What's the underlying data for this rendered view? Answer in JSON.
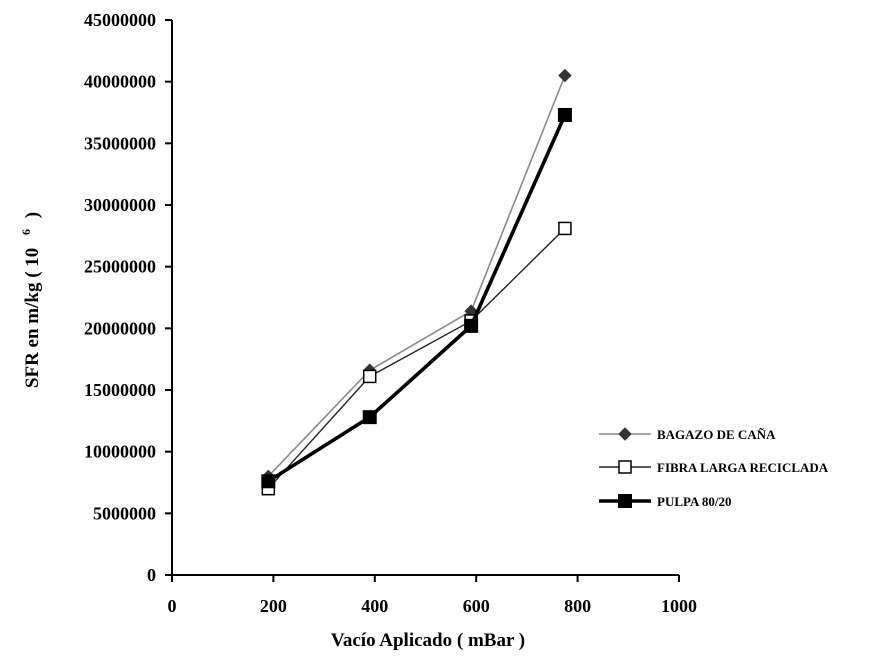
{
  "chart_data": {
    "type": "line",
    "xlabel": "Vacío Aplicado ( mBar )",
    "ylabel": "SFR en m/kg ( 10  6 )",
    "ylabel_main": "SFR en m/kg ( 10",
    "ylabel_sup": "6",
    "ylabel_close": ")",
    "xlim": [
      0,
      1000
    ],
    "ylim": [
      0,
      45000000
    ],
    "x_ticks": [
      "0",
      "200",
      "400",
      "600",
      "800",
      "1000"
    ],
    "y_ticks": [
      "0",
      "5000000",
      "10000000",
      "15000000",
      "20000000",
      "25000000",
      "30000000",
      "35000000",
      "40000000",
      "45000000"
    ],
    "grid": false,
    "legend_position": "right",
    "series": [
      {
        "name": "BAGAZO DE CAÑA",
        "marker": "diamond",
        "color": "#888888",
        "x": [
          190,
          390,
          590,
          775
        ],
        "y": [
          8000000,
          16600000,
          21400000,
          40500000
        ]
      },
      {
        "name": "FIBRA LARGA RECICLADA",
        "marker": "open-square",
        "color": "#000000",
        "x": [
          190,
          390,
          590,
          775
        ],
        "y": [
          7000000,
          16100000,
          20600000,
          28100000
        ]
      },
      {
        "name": "PULPA 80/20",
        "marker": "filled-square",
        "color": "#000000",
        "x": [
          190,
          390,
          590,
          775
        ],
        "y": [
          7600000,
          12800000,
          20200000,
          37300000
        ]
      }
    ]
  }
}
